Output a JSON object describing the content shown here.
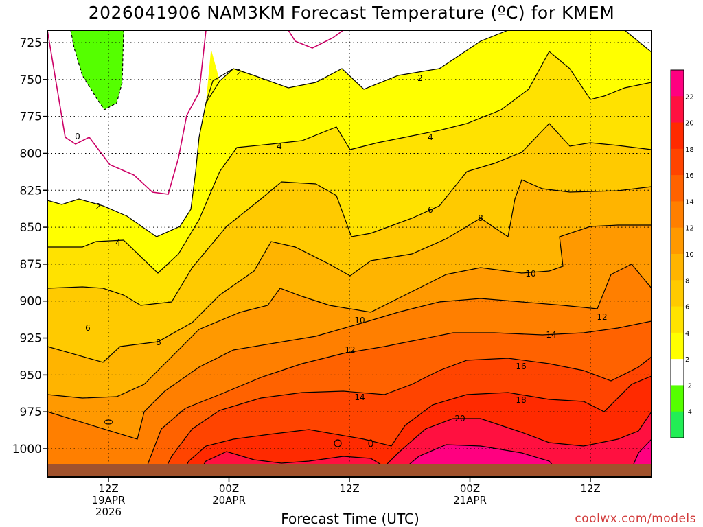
{
  "chart_data": {
    "type": "contour",
    "title": "2026041906 NAM3KM Forecast Temperature (ºC) for KMEM",
    "xlabel": "Forecast Time (UTC)",
    "ylabel": "",
    "credit": "coolwx.com/models",
    "yaxis": {
      "ticks": [
        725,
        750,
        775,
        800,
        825,
        850,
        875,
        900,
        925,
        950,
        975,
        1000
      ],
      "ylim": [
        1016,
        715
      ],
      "units": "hPa",
      "grid": true
    },
    "xaxis": {
      "ticks": [
        {
          "lines": [
            "12Z",
            "19APR",
            "2026"
          ]
        },
        {
          "lines": [
            "00Z",
            "20APR"
          ]
        },
        {
          "lines": [
            "12Z"
          ]
        },
        {
          "lines": [
            "00Z",
            "21APR"
          ]
        },
        {
          "lines": [
            "12Z"
          ]
        }
      ],
      "grid": true
    },
    "colorbar": {
      "labels": [
        "22",
        "20",
        "18",
        "16",
        "14",
        "12",
        "10",
        "8",
        "6",
        "4",
        "2",
        "-2",
        "-4"
      ],
      "colors": [
        "#ff0080",
        "#ff1040",
        "#ff2a00",
        "#ff4400",
        "#ff6200",
        "#ff7f00",
        "#ff9900",
        "#ffb400",
        "#ffca00",
        "#ffe200",
        "#ffff00",
        "#ffffff",
        "#55ff00",
        "#22ee55"
      ]
    },
    "contour_labels": [
      "0",
      "2",
      "2",
      "2",
      "4",
      "4",
      "4",
      "6",
      "6",
      "6",
      "8",
      "8",
      "10",
      "10",
      "12",
      "12",
      "12",
      "14",
      "14",
      "16",
      "18",
      "20"
    ]
  }
}
